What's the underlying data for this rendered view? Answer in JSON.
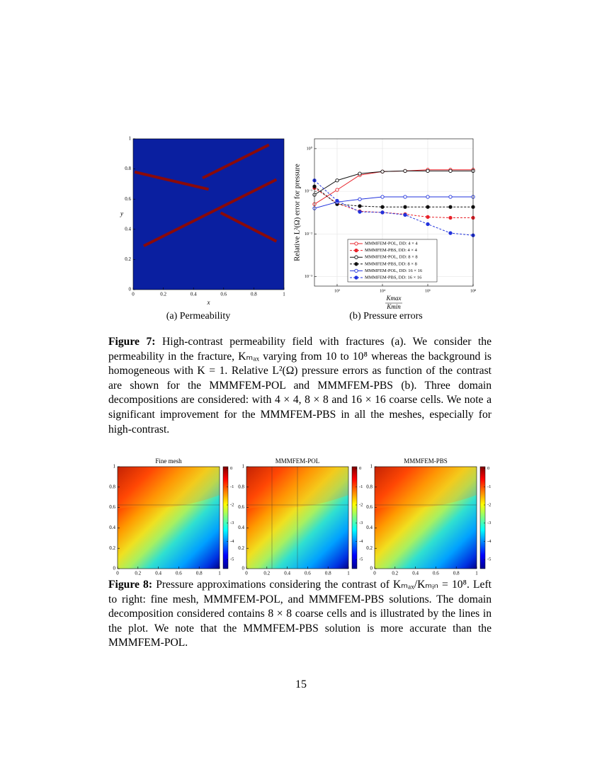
{
  "figure7": {
    "caption_label": "Figure 7:",
    "caption_text": "High-contrast permeability field with fractures (a). We consider the permeability in the fracture, Kₘₐₓ varying from 10 to 10⁸ whereas the background is homogeneous with K = 1. Relative L²(Ω) pressure errors as function of the contrast are shown for the MMMFEM-POL and MMMFEM-PBS (b). Three domain decompositions are considered: with 4 × 4, 8 × 8 and 16 × 16 coarse cells. We note a significant improvement for the MMMFEM-PBS in all the meshes, especially for high-contrast.",
    "panel_a": {
      "caption": "(a) Permeability",
      "xlabel": "x",
      "ylabel": "y",
      "xlim": [
        0,
        1
      ],
      "ylim": [
        0,
        1
      ],
      "xticks": [
        0,
        0.2,
        0.4,
        0.6,
        0.8,
        1
      ],
      "yticks": [
        0,
        0.2,
        0.4,
        0.6,
        0.8,
        1
      ],
      "background_color": "#0a1fa0",
      "fracture_color": "#8a0a0a",
      "fractures": [
        {
          "x": [
            0.01,
            0.5
          ],
          "y": [
            0.78,
            0.665
          ]
        },
        {
          "x": [
            0.46,
            0.9
          ],
          "y": [
            0.74,
            0.96
          ]
        },
        {
          "x": [
            0.07,
            0.95
          ],
          "y": [
            0.29,
            0.73
          ]
        },
        {
          "x": [
            0.58,
            0.95
          ],
          "y": [
            0.51,
            0.32
          ]
        }
      ]
    },
    "panel_b": {
      "caption": "(b) Pressure errors",
      "chart_data": {
        "type": "line",
        "ylabel": "Relative L²(Ω) error for pressure",
        "xlabel_numerator": "Kmax",
        "xlabel_denominator": "Kmin",
        "log_x": true,
        "log_y": true,
        "grid": true,
        "x": [
          10,
          100,
          1000,
          10000,
          100000,
          1000000,
          10000000,
          100000000
        ],
        "xlim": [
          10,
          100000000
        ],
        "ylim": [
          0.0006,
          1.7
        ],
        "xticks": [
          {
            "value": 100,
            "label": "10²"
          },
          {
            "value": 10000,
            "label": "10⁴"
          },
          {
            "value": 1000000,
            "label": "10⁶"
          },
          {
            "value": 100000000,
            "label": "10⁸"
          }
        ],
        "yticks": [
          {
            "value": 1,
            "label": "10⁰"
          },
          {
            "value": 0.1,
            "label": "10⁻¹"
          },
          {
            "value": 0.01,
            "label": "10⁻²"
          },
          {
            "value": 0.001,
            "label": "10⁻³"
          }
        ],
        "series": [
          {
            "name": "MMMFEM-POL, DD: 4 × 4",
            "color": "#e8222a",
            "linestyle": "solid",
            "filled": false,
            "values": [
              0.05,
              0.108,
              0.24,
              0.29,
              0.3,
              0.32,
              0.32,
              0.32
            ]
          },
          {
            "name": "MMMFEM-PBS, DD: 4 × 4",
            "color": "#e8222a",
            "linestyle": "dashed",
            "filled": true,
            "values": [
              0.12,
              0.052,
              0.034,
              0.032,
              0.029,
              0.025,
              0.024,
              0.024
            ]
          },
          {
            "name": "MMMFEM-POL, DD: 8 × 8",
            "color": "#111111",
            "linestyle": "solid",
            "filled": false,
            "values": [
              0.083,
              0.18,
              0.26,
              0.29,
              0.3,
              0.3,
              0.3,
              0.3
            ]
          },
          {
            "name": "MMMFEM-PBS, DD: 8 × 8",
            "color": "#111111",
            "linestyle": "dashed",
            "filled": true,
            "values": [
              0.13,
              0.05,
              0.045,
              0.043,
              0.043,
              0.043,
              0.043,
              0.043
            ]
          },
          {
            "name": "MMMFEM-POL, DD: 16 × 16",
            "color": "#2233dd",
            "linestyle": "solid",
            "filled": false,
            "values": [
              0.04,
              0.056,
              0.065,
              0.074,
              0.074,
              0.074,
              0.074,
              0.074
            ]
          },
          {
            "name": "MMMFEM-PBS, DD: 16 × 16",
            "color": "#2233dd",
            "linestyle": "dashed",
            "filled": true,
            "values": [
              0.18,
              0.06,
              0.033,
              0.032,
              0.028,
              0.017,
              0.0105,
              0.0093
            ]
          }
        ],
        "legend": "lower-right"
      }
    }
  },
  "figure8": {
    "caption_label": "Figure 8:",
    "caption_text": "Pressure approximations considering the contrast of Kₘₐₓ/Kₘᵢₙ = 10⁸. Left to right: fine mesh, MMMFEM-POL, and MMMFEM-PBS solutions. The domain decomposition considered contains 8 × 8 coarse cells and is illustrated by the lines in the plot. We note that the MMMFEM-PBS solution is more accurate than the MMMFEM-POL.",
    "panels": [
      {
        "title": "Fine mesh",
        "xlim": [
          0,
          1
        ],
        "ylim": [
          0,
          1
        ],
        "xticks": [
          0,
          0.2,
          0.4,
          0.6,
          0.8,
          1
        ],
        "yticks": [
          0,
          0.2,
          0.4,
          0.6,
          0.8,
          1
        ],
        "clim": [
          -5.5,
          0.1
        ],
        "cticks": [
          0,
          -1,
          -2,
          -3,
          -4,
          -5
        ]
      },
      {
        "title": "MMMFEM-POL",
        "xlim": [
          0,
          1
        ],
        "ylim": [
          0,
          1
        ],
        "xticks": [
          0,
          0.2,
          0.4,
          0.6,
          0.8,
          1
        ],
        "yticks": [
          0,
          0.2,
          0.4,
          0.6,
          0.8,
          1
        ],
        "clim": [
          -5.5,
          0.1
        ],
        "cticks": [
          0,
          -1,
          -2,
          -3,
          -4,
          -5
        ]
      },
      {
        "title": "MMMFEM-PBS",
        "xlim": [
          0,
          1
        ],
        "ylim": [
          0,
          1
        ],
        "xticks": [
          0,
          0.2,
          0.4,
          0.6,
          0.8,
          1
        ],
        "yticks": [
          0,
          0.2,
          0.4,
          0.6,
          0.8,
          1
        ],
        "clim": [
          -5.5,
          0.1
        ],
        "cticks": [
          0,
          -1,
          -2,
          -3,
          -4,
          -5
        ]
      }
    ]
  },
  "page_number": "15"
}
